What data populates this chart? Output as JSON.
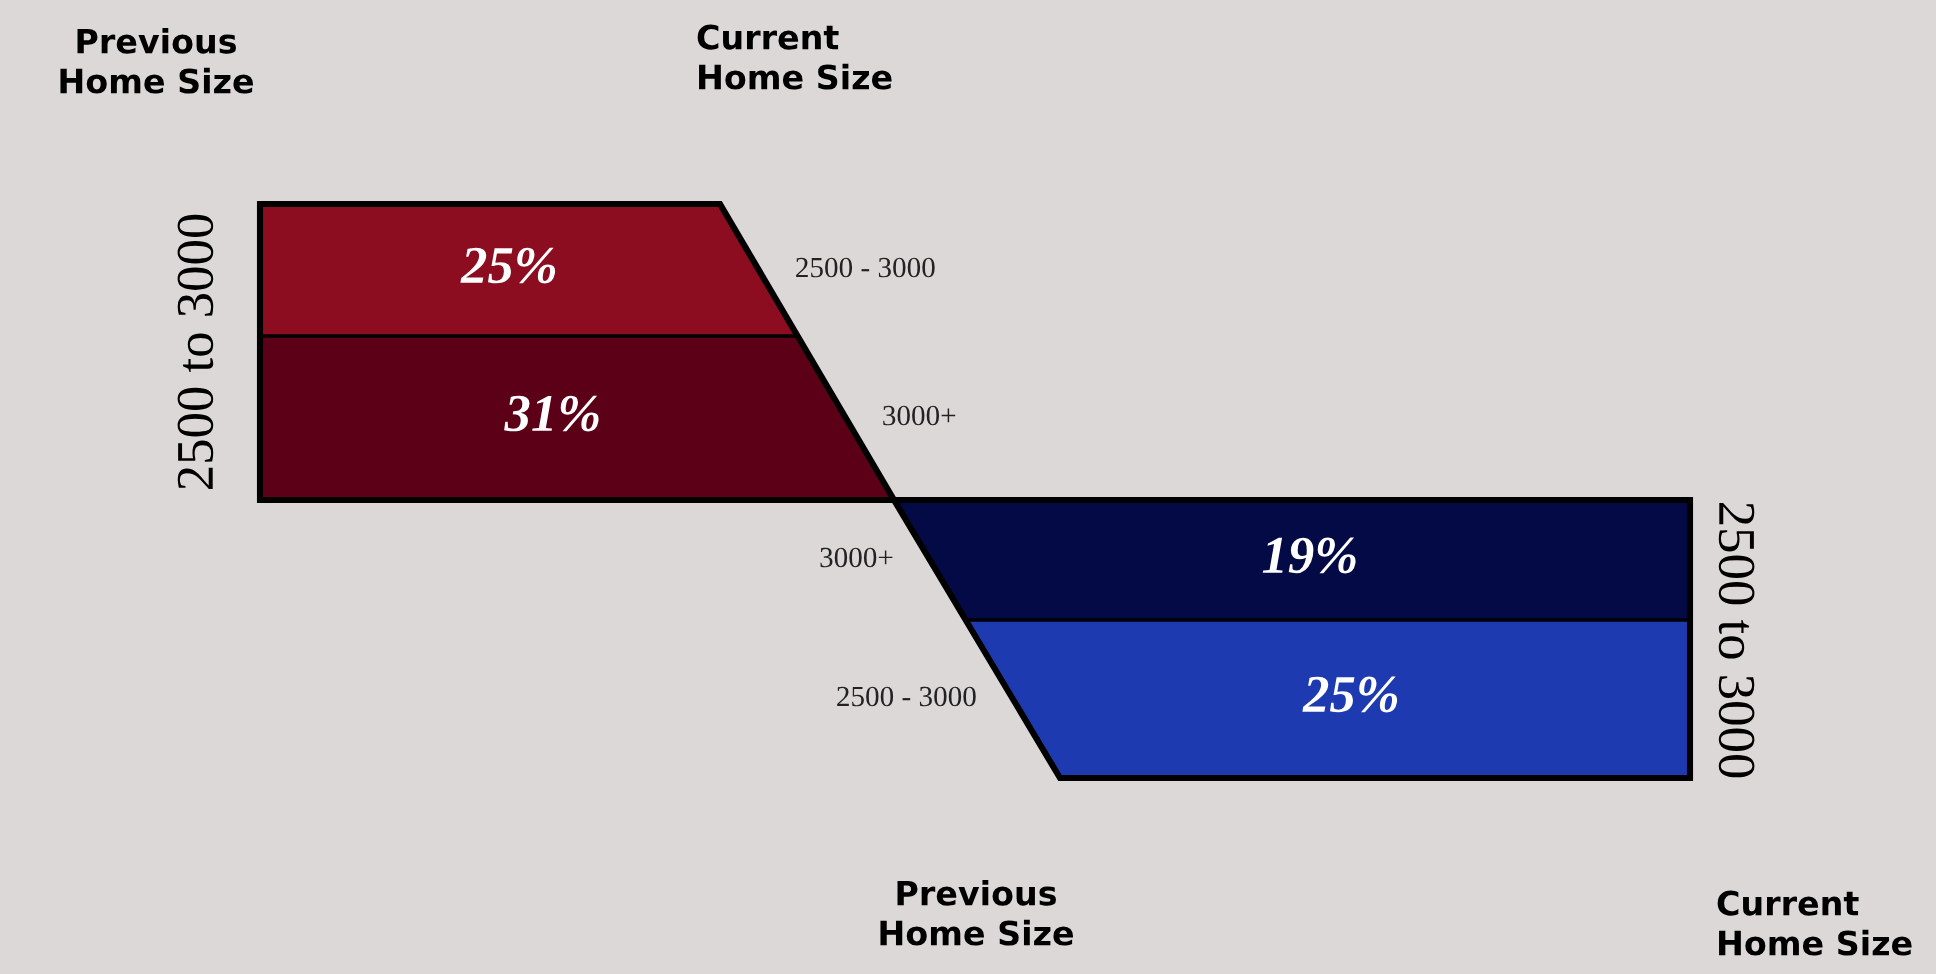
{
  "chart_data": [
    {
      "type": "other",
      "ylabel": "2500 to 3000",
      "categories": [
        "2500 - 3000",
        "3000+"
      ],
      "values": [
        25,
        31
      ],
      "value_labels": [
        "25%",
        "31%"
      ],
      "colors": [
        "#8b0d1f",
        "#5c0018"
      ],
      "annotations": [
        "Previous\nHome Size",
        "Current\nHome Size"
      ]
    },
    {
      "type": "other",
      "ylabel": "2500 to 3000",
      "categories": [
        "3000+",
        "2500 - 3000"
      ],
      "values": [
        19,
        25
      ],
      "value_labels": [
        "19%",
        "25%"
      ],
      "colors": [
        "#030a45",
        "#1e3ab0"
      ],
      "annotations": [
        "Previous\nHome Size",
        "Current\nHome Size"
      ]
    }
  ]
}
